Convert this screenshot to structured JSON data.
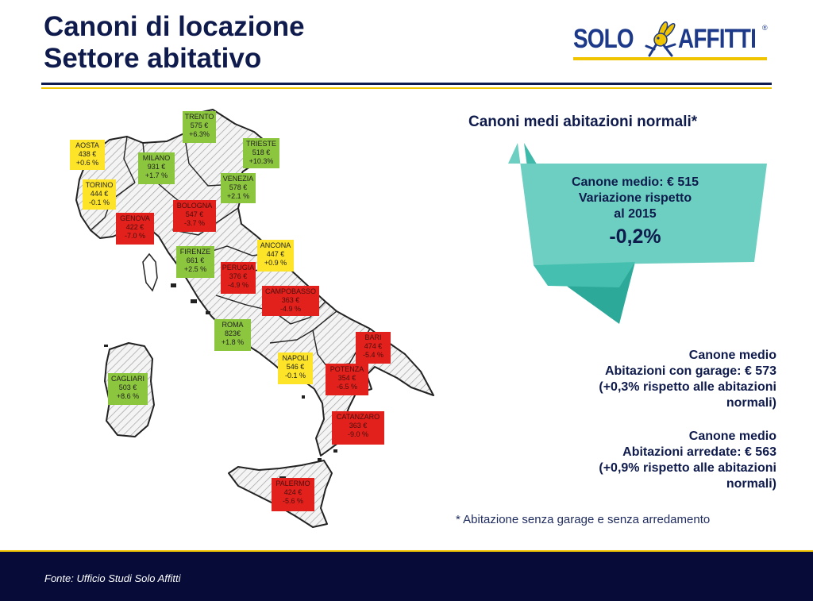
{
  "header": {
    "title_line1": "Canoni di locazione",
    "title_line2": "Settore abitativo",
    "logo_text_left": "SOLO",
    "logo_text_right": "AFFITTI",
    "logo_registered": "®"
  },
  "colors": {
    "navy": "#0f1b4c",
    "accent_yellow": "#f1c400",
    "positive_green": "#8cc63f",
    "neutral_yellow": "#fde428",
    "negative_red": "#e2211c",
    "ribbon_teal": "#6ccfc1",
    "ribbon_dark": "#2da999"
  },
  "map": {
    "cities": [
      {
        "name": "TRENTO",
        "rent": "575 €",
        "change": "+6.3%",
        "status": "green"
      },
      {
        "name": "AOSTA",
        "rent": "438 €",
        "change": "+0.6 %",
        "status": "yellow"
      },
      {
        "name": "MILANO",
        "rent": "931 €",
        "change": "+1.7 %",
        "status": "green"
      },
      {
        "name": "TRIESTE",
        "rent": "518 €",
        "change": "+10.3%",
        "status": "green"
      },
      {
        "name": "TORINO",
        "rent": "444 €",
        "change": "-0.1 %",
        "status": "yellow"
      },
      {
        "name": "VENEZIA",
        "rent": "578 €",
        "change": "+2.1 %",
        "status": "green"
      },
      {
        "name": "BOLOGNA",
        "rent": "547 €",
        "change": "-3.7 %",
        "status": "red"
      },
      {
        "name": "GENOVA",
        "rent": "422 €",
        "change": "-7.0 %",
        "status": "red"
      },
      {
        "name": "ANCONA",
        "rent": "447 €",
        "change": "+0.9 %",
        "status": "yellow"
      },
      {
        "name": "FIRENZE",
        "rent": "661 €",
        "change": "+2.5 %",
        "status": "green"
      },
      {
        "name": "PERUGIA",
        "rent": "376 €",
        "change": "-4.9 %",
        "status": "red"
      },
      {
        "name": "CAMPOBASSO",
        "rent": "363 €",
        "change": "-4.9  %",
        "status": "red"
      },
      {
        "name": "ROMA",
        "rent": "823€",
        "change": "+1.8  %",
        "status": "green"
      },
      {
        "name": "BARI",
        "rent": "474 €",
        "change": "-5.4  %",
        "status": "red"
      },
      {
        "name": "NAPOLI",
        "rent": "546 €",
        "change": "-0.1  %",
        "status": "yellow"
      },
      {
        "name": "POTENZA",
        "rent": "354 €",
        "change": "-6.5  %",
        "status": "red"
      },
      {
        "name": "CAGLIARI",
        "rent": "503 €",
        "change": "+8.6 %",
        "status": "green"
      },
      {
        "name": "CATANZARO",
        "rent": "363 €",
        "change": "-9.0  %",
        "status": "red"
      },
      {
        "name": "PALERMO",
        "rent": "424 €",
        "change": "-5.6  %",
        "status": "red"
      }
    ]
  },
  "panel": {
    "heading": "Canoni medi abitazioni normali*",
    "ribbon": {
      "line1": "Canone medio: € 515",
      "line2": "Variazione rispetto",
      "line3": "al 2015",
      "value": "-0,2%"
    },
    "garage": {
      "line1": "Canone medio",
      "line2": "Abitazioni con garage: € 573",
      "line3": "(+0,3% rispetto alle abitazioni",
      "line4": "normali)"
    },
    "furnished": {
      "line1": "Canone medio",
      "line2": "Abitazioni arredate: € 563",
      "line3": "(+0,9% rispetto alle abitazioni",
      "line4": "normali)"
    },
    "footnote": "* Abitazione senza garage e senza arredamento"
  },
  "footer": {
    "source": "Fonte: Ufficio Studi Solo Affitti"
  }
}
